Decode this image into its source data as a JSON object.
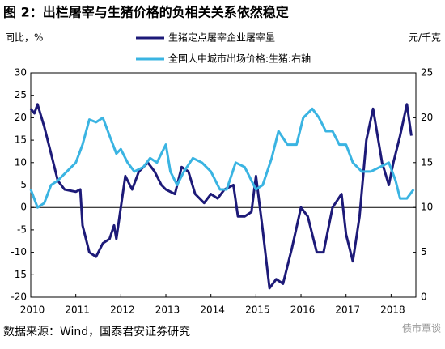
{
  "chart_data": {
    "type": "line",
    "title": "图 2：出栏屠宰与生猪价格的负相关关系依然稳定",
    "y_label": "同比，%",
    "y2_label": "元/千克",
    "source": "数据来源：Wind，国泰君安证券研究",
    "watermark": "债市覃谈",
    "xlim": [
      2010,
      2018.55
    ],
    "xticks": [
      2010,
      2011,
      2012,
      2013,
      2014,
      2015,
      2016,
      2017,
      2018
    ],
    "ylim": [
      -20,
      30
    ],
    "yticks": [
      -20,
      -15,
      -10,
      -5,
      0,
      5,
      10,
      15,
      20,
      25,
      30
    ],
    "y2lim": [
      0,
      25
    ],
    "y2ticks": [
      0,
      5,
      10,
      15,
      20,
      25
    ],
    "series": [
      {
        "name": "生猪定点屠宰企业屠宰量",
        "color": "#1d1a78",
        "x": [
          2010.0,
          2010.08,
          2010.15,
          2010.3,
          2010.45,
          2010.6,
          2010.75,
          2011.0,
          2011.1,
          2011.15,
          2011.3,
          2011.45,
          2011.6,
          2011.75,
          2011.85,
          2011.9,
          2012.0,
          2012.1,
          2012.25,
          2012.4,
          2012.6,
          2012.75,
          2012.9,
          2013.0,
          2013.2,
          2013.35,
          2013.5,
          2013.65,
          2013.85,
          2014.0,
          2014.15,
          2014.3,
          2014.5,
          2014.6,
          2014.75,
          2014.9,
          2015.0,
          2015.15,
          2015.3,
          2015.45,
          2015.6,
          2015.8,
          2016.0,
          2016.15,
          2016.35,
          2016.5,
          2016.7,
          2016.9,
          2017.0,
          2017.15,
          2017.3,
          2017.45,
          2017.6,
          2017.8,
          2017.95,
          2018.05,
          2018.2,
          2018.35,
          2018.45
        ],
        "values": [
          22,
          21,
          23,
          18,
          12,
          6,
          4,
          3.5,
          4,
          -4,
          -10,
          -11,
          -8,
          -7,
          -4,
          -7,
          0,
          7,
          4,
          8,
          10,
          8,
          5,
          4,
          3,
          9,
          8,
          3,
          1,
          3,
          2,
          4,
          5,
          -2,
          -2,
          -1,
          7,
          -5,
          -18,
          -16,
          -17,
          -9,
          0,
          -2,
          -10,
          -10,
          0,
          3,
          -6,
          -12,
          -2,
          15,
          22,
          10,
          5,
          10,
          16,
          23,
          16
        ]
      },
      {
        "name": "全国大中城市出场价格:生猪:右轴",
        "color": "#3ab4e2",
        "axis": "y2",
        "x": [
          2010.0,
          2010.15,
          2010.3,
          2010.45,
          2010.6,
          2010.8,
          2011.0,
          2011.15,
          2011.3,
          2011.45,
          2011.6,
          2011.75,
          2011.9,
          2012.0,
          2012.15,
          2012.3,
          2012.5,
          2012.65,
          2012.8,
          2013.0,
          2013.1,
          2013.25,
          2013.4,
          2013.6,
          2013.8,
          2014.0,
          2014.2,
          2014.35,
          2014.55,
          2014.75,
          2014.9,
          2015.0,
          2015.15,
          2015.35,
          2015.5,
          2015.7,
          2015.9,
          2016.05,
          2016.25,
          2016.4,
          2016.55,
          2016.7,
          2016.85,
          2017.0,
          2017.15,
          2017.35,
          2017.55,
          2017.75,
          2017.95,
          2018.1,
          2018.2,
          2018.35,
          2018.5
        ],
        "values": [
          12,
          10,
          10.5,
          12.5,
          13,
          14,
          15,
          17,
          19.8,
          19.5,
          20,
          18,
          16,
          16.5,
          15,
          14,
          14.5,
          15.5,
          15,
          17,
          14,
          12.5,
          14,
          15.5,
          15,
          14,
          12,
          12,
          15,
          14.5,
          13,
          12,
          12.5,
          15.5,
          18.5,
          17,
          17,
          20,
          21,
          20,
          18.5,
          18.5,
          17,
          17,
          15,
          14,
          14,
          14.5,
          15,
          13,
          11,
          11,
          12
        ]
      }
    ]
  }
}
